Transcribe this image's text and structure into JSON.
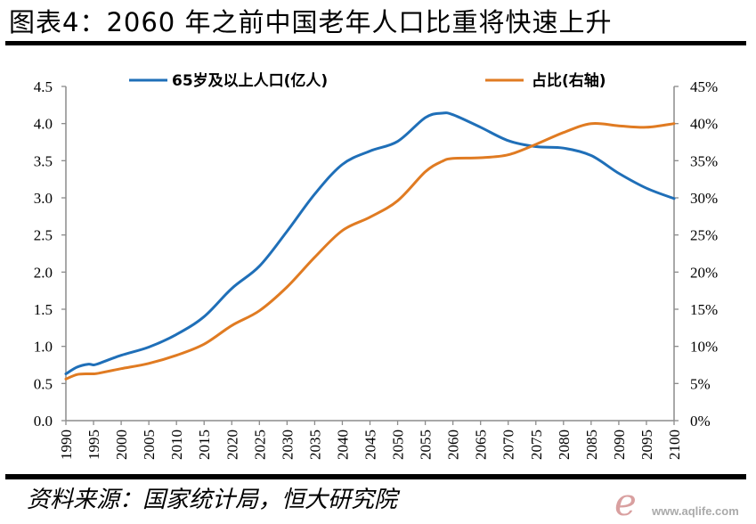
{
  "title": "图表4：2060 年之前中国老年人口比重将快速上升",
  "source": "资料来源：国家统计局，恒大研究院",
  "watermark": "www.aqlife.com",
  "colors": {
    "series1": "#1f6fb8",
    "series2": "#e07b22",
    "axis": "#8c8c8c"
  },
  "chart_data": {
    "type": "line",
    "title": "图表4：2060 年之前中国老年人口比重将快速上升",
    "xlabel": "",
    "ylabel_left": "",
    "ylabel_right": "",
    "xlim": [
      1990,
      2100
    ],
    "ylim_left": [
      0,
      4.5
    ],
    "ylim_right": [
      0,
      45
    ],
    "grid": false,
    "legend": "top",
    "x_ticks": [
      "1990",
      "1995",
      "2000",
      "2005",
      "2010",
      "2015",
      "2020",
      "2025",
      "2030",
      "2035",
      "2040",
      "2045",
      "2050",
      "2055",
      "2060",
      "2065",
      "2070",
      "2075",
      "2080",
      "2085",
      "2090",
      "2095",
      "2100"
    ],
    "y_ticks_left": [
      "0.0",
      "0.5",
      "1.0",
      "1.5",
      "2.0",
      "2.5",
      "3.0",
      "3.5",
      "4.0",
      "4.5"
    ],
    "y_ticks_right": [
      "0%",
      "5%",
      "10%",
      "15%",
      "20%",
      "25%",
      "30%",
      "35%",
      "40%",
      "45%"
    ],
    "x": [
      1990,
      1992,
      1994,
      1995,
      1996,
      2000,
      2005,
      2010,
      2015,
      2020,
      2025,
      2030,
      2035,
      2040,
      2045,
      2050,
      2055,
      2058,
      2060,
      2065,
      2070,
      2075,
      2080,
      2085,
      2090,
      2095,
      2100
    ],
    "series": [
      {
        "name": "65岁及以上人口(亿人)",
        "axis": "left",
        "values": [
          0.63,
          0.72,
          0.76,
          0.75,
          0.77,
          0.88,
          0.99,
          1.16,
          1.4,
          1.78,
          2.08,
          2.55,
          3.05,
          3.45,
          3.63,
          3.76,
          4.08,
          4.14,
          4.12,
          3.95,
          3.77,
          3.69,
          3.67,
          3.57,
          3.33,
          3.13,
          2.99
        ]
      },
      {
        "name": "占比(右轴)",
        "axis": "right",
        "values": [
          5.6,
          6.2,
          6.3,
          6.3,
          6.4,
          7.0,
          7.7,
          8.8,
          10.3,
          12.8,
          14.8,
          18.0,
          22.0,
          25.6,
          27.4,
          29.6,
          33.5,
          34.9,
          35.3,
          35.4,
          35.8,
          37.2,
          38.8,
          40.0,
          39.7,
          39.5,
          40.0
        ]
      }
    ]
  }
}
